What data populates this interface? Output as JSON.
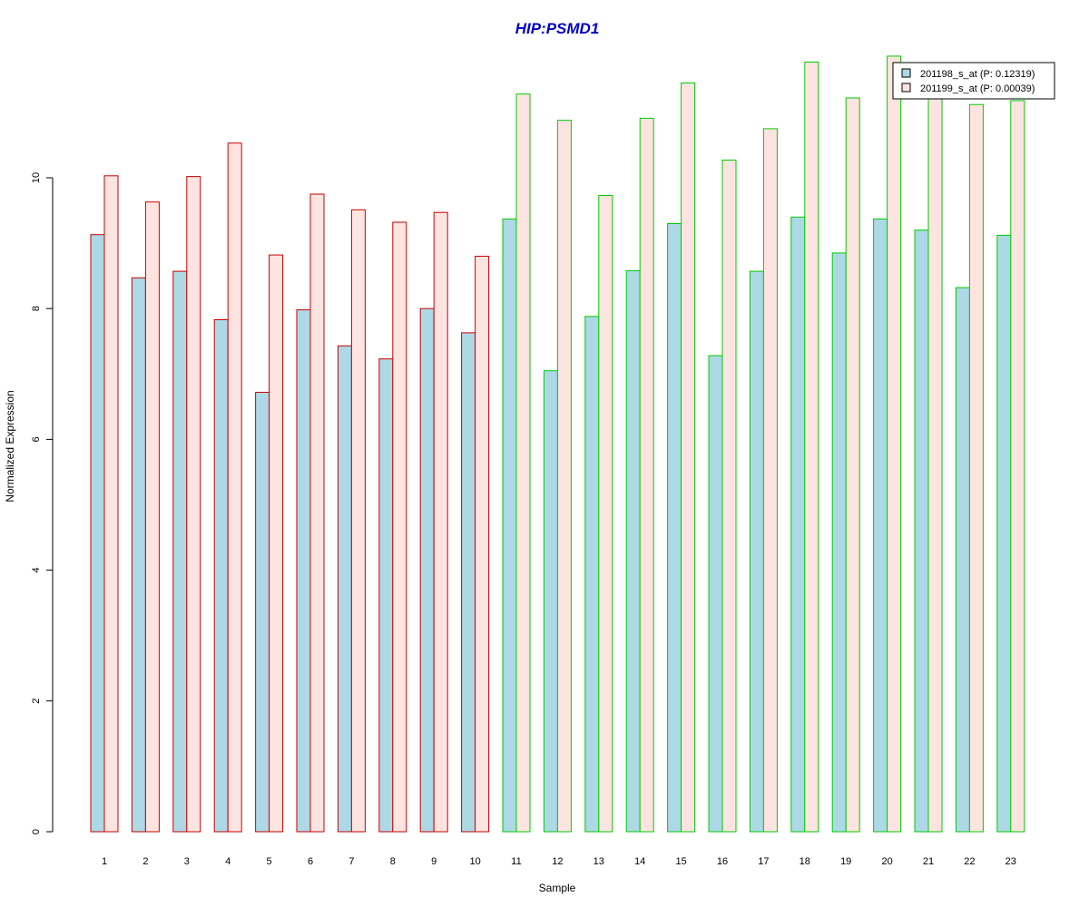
{
  "chart_data": {
    "type": "bar",
    "title": "HIP:PSMD1",
    "xlabel": "Sample",
    "ylabel": "Normalized Expression",
    "ylim": [
      0,
      12
    ],
    "yticks": [
      0,
      2,
      4,
      6,
      8,
      10
    ],
    "categories": [
      "1",
      "2",
      "3",
      "4",
      "5",
      "6",
      "7",
      "8",
      "9",
      "10",
      "11",
      "12",
      "13",
      "14",
      "15",
      "16",
      "17",
      "18",
      "19",
      "20",
      "21",
      "22",
      "23"
    ],
    "group_border_colors": [
      "#cc0000",
      "#cc0000",
      "#cc0000",
      "#cc0000",
      "#cc0000",
      "#cc0000",
      "#cc0000",
      "#cc0000",
      "#cc0000",
      "#cc0000",
      "#00cc00",
      "#00cc00",
      "#00cc00",
      "#00cc00",
      "#00cc00",
      "#00cc00",
      "#00cc00",
      "#00cc00",
      "#00cc00",
      "#00cc00",
      "#00cc00",
      "#00cc00",
      "#00cc00"
    ],
    "series": [
      {
        "name": "201198_s_at (P: 0.12319)",
        "fill": "#add8e6",
        "values": [
          9.13,
          8.47,
          8.57,
          7.83,
          6.72,
          7.98,
          7.43,
          7.23,
          8.0,
          7.63,
          9.37,
          7.05,
          7.88,
          8.58,
          9.3,
          7.28,
          8.57,
          9.4,
          8.85,
          9.37,
          9.2,
          8.32,
          9.12
        ]
      },
      {
        "name": "201199_s_at (P: 0.00039)",
        "fill": "#fde4e0",
        "values": [
          10.03,
          9.63,
          10.02,
          10.53,
          8.82,
          9.75,
          9.51,
          9.32,
          9.47,
          8.8,
          11.28,
          10.88,
          9.73,
          10.91,
          11.45,
          10.27,
          10.75,
          11.77,
          11.22,
          11.86,
          11.27,
          11.12,
          11.18
        ]
      }
    ],
    "legend": {
      "position": "top-right",
      "entries": [
        {
          "label": "201198_s_at (P: 0.12319)",
          "fill": "#add8e6"
        },
        {
          "label": "201199_s_at (P: 0.00039)",
          "fill": "#fde4e0"
        }
      ]
    },
    "grid": false
  }
}
